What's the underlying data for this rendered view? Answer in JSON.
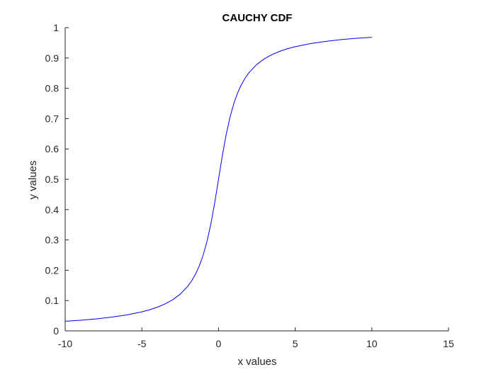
{
  "chart_data": {
    "type": "line",
    "title": "CAUCHY CDF",
    "xlabel": "x values",
    "ylabel": "y values",
    "xlim": [
      -10,
      15
    ],
    "ylim": [
      0,
      1
    ],
    "x_ticks": [
      -10,
      -5,
      0,
      5,
      10,
      15
    ],
    "y_ticks": [
      0,
      0.1,
      0.2,
      0.3,
      0.4,
      0.5,
      0.6,
      0.7,
      0.8,
      0.9,
      1
    ],
    "x_tick_labels": [
      "-10",
      "-5",
      "0",
      "5",
      "10",
      "15"
    ],
    "y_tick_labels": [
      "0",
      "0.1",
      "0.2",
      "0.3",
      "0.4",
      "0.5",
      "0.6",
      "0.7",
      "0.8",
      "0.9",
      "1"
    ],
    "grid": false,
    "series": [
      {
        "color": "#0000ff",
        "x": [
          -10,
          -9,
          -8,
          -7,
          -6,
          -5,
          -4.5,
          -4,
          -3.5,
          -3,
          -2.5,
          -2,
          -1.75,
          -1.5,
          -1.25,
          -1,
          -0.75,
          -0.5,
          -0.25,
          0,
          0.25,
          0.5,
          0.75,
          1,
          1.25,
          1.5,
          1.75,
          2,
          2.5,
          3,
          3.5,
          4,
          4.5,
          5,
          6,
          7,
          8,
          9,
          10
        ],
        "y": [
          0.0317,
          0.0351,
          0.0395,
          0.0452,
          0.0526,
          0.0628,
          0.0695,
          0.078,
          0.0886,
          0.1024,
          0.1211,
          0.1476,
          0.1653,
          0.1872,
          0.2148,
          0.25,
          0.2952,
          0.3524,
          0.422,
          0.5,
          0.578,
          0.6476,
          0.7048,
          0.75,
          0.7852,
          0.8128,
          0.8347,
          0.8524,
          0.8789,
          0.8976,
          0.9114,
          0.922,
          0.9305,
          0.9372,
          0.9474,
          0.9548,
          0.9605,
          0.9649,
          0.9683
        ]
      }
    ]
  }
}
